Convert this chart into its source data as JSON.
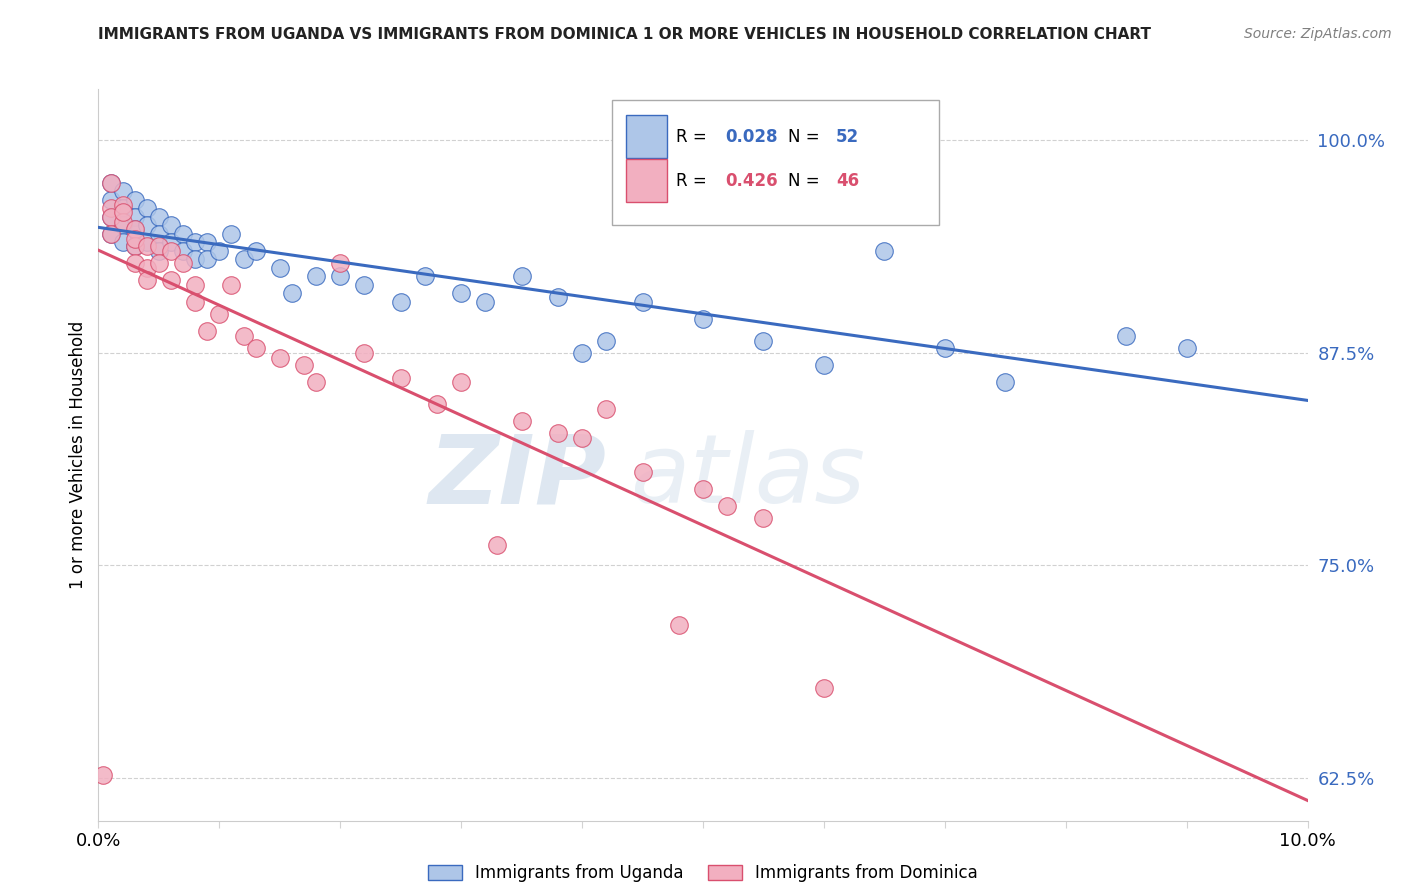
{
  "title": "IMMIGRANTS FROM UGANDA VS IMMIGRANTS FROM DOMINICA 1 OR MORE VEHICLES IN HOUSEHOLD CORRELATION CHART",
  "source": "Source: ZipAtlas.com",
  "ylabel": "1 or more Vehicles in Household",
  "legend_uganda": "Immigrants from Uganda",
  "legend_dominica": "Immigrants from Dominica",
  "R_uganda": 0.028,
  "N_uganda": 52,
  "R_dominica": 0.426,
  "N_dominica": 46,
  "color_uganda": "#aec6e8",
  "color_dominica": "#f2afc0",
  "line_color_uganda": "#3a6abf",
  "line_color_dominica": "#d94f6e",
  "watermark_zip": "ZIP",
  "watermark_atlas": "atlas",
  "xlim": [
    0.0,
    0.1
  ],
  "ylim": [
    0.6,
    1.03
  ],
  "yticks": [
    0.625,
    0.75,
    0.875,
    1.0
  ],
  "ytick_labels": [
    "62.5%",
    "75.0%",
    "87.5%",
    "100.0%"
  ],
  "uganda_x": [
    0.001,
    0.001,
    0.001,
    0.001,
    0.002,
    0.002,
    0.002,
    0.002,
    0.003,
    0.003,
    0.003,
    0.003,
    0.004,
    0.004,
    0.004,
    0.005,
    0.005,
    0.005,
    0.006,
    0.006,
    0.007,
    0.007,
    0.008,
    0.008,
    0.009,
    0.009,
    0.01,
    0.011,
    0.012,
    0.013,
    0.015,
    0.016,
    0.018,
    0.02,
    0.022,
    0.025,
    0.027,
    0.03,
    0.032,
    0.035,
    0.038,
    0.04,
    0.042,
    0.045,
    0.05,
    0.055,
    0.06,
    0.065,
    0.07,
    0.075,
    0.085,
    0.09
  ],
  "uganda_y": [
    0.975,
    0.965,
    0.955,
    0.945,
    0.97,
    0.96,
    0.95,
    0.94,
    0.965,
    0.955,
    0.948,
    0.938,
    0.96,
    0.95,
    0.94,
    0.955,
    0.945,
    0.935,
    0.95,
    0.94,
    0.945,
    0.935,
    0.94,
    0.93,
    0.94,
    0.93,
    0.935,
    0.945,
    0.93,
    0.935,
    0.925,
    0.91,
    0.92,
    0.92,
    0.915,
    0.905,
    0.92,
    0.91,
    0.905,
    0.92,
    0.908,
    0.875,
    0.882,
    0.905,
    0.895,
    0.882,
    0.868,
    0.935,
    0.878,
    0.858,
    0.885,
    0.878
  ],
  "dominica_x": [
    0.0004,
    0.001,
    0.001,
    0.001,
    0.001,
    0.002,
    0.002,
    0.002,
    0.003,
    0.003,
    0.003,
    0.003,
    0.004,
    0.004,
    0.004,
    0.005,
    0.005,
    0.006,
    0.006,
    0.007,
    0.008,
    0.008,
    0.009,
    0.01,
    0.011,
    0.012,
    0.013,
    0.015,
    0.017,
    0.018,
    0.02,
    0.022,
    0.025,
    0.028,
    0.03,
    0.033,
    0.035,
    0.038,
    0.04,
    0.042,
    0.045,
    0.048,
    0.05,
    0.052,
    0.055,
    0.06
  ],
  "dominica_y": [
    0.627,
    0.975,
    0.96,
    0.955,
    0.945,
    0.962,
    0.952,
    0.958,
    0.948,
    0.938,
    0.928,
    0.942,
    0.938,
    0.925,
    0.918,
    0.938,
    0.928,
    0.935,
    0.918,
    0.928,
    0.915,
    0.905,
    0.888,
    0.898,
    0.915,
    0.885,
    0.878,
    0.872,
    0.868,
    0.858,
    0.928,
    0.875,
    0.86,
    0.845,
    0.858,
    0.762,
    0.835,
    0.828,
    0.825,
    0.842,
    0.805,
    0.715,
    0.795,
    0.785,
    0.778,
    0.678
  ]
}
